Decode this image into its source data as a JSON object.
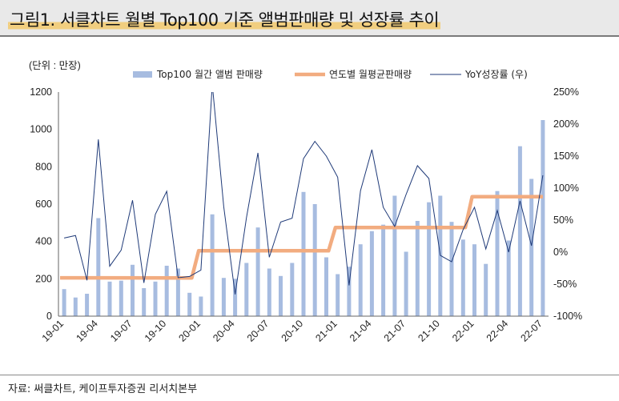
{
  "title": "그림1. 서클차트 월별 Top100 기준 앨범판매량 및 성장률 추이",
  "source": "자료: 써클차트, 케이프투자증권 리서치본부",
  "colors": {
    "bar": "#a7bce0",
    "avg": "#f2ac80",
    "yoy": "#1f3a78",
    "title_highlight": "#f1ce7f",
    "title_bg": "#e9e9e9"
  },
  "chart_data": {
    "type": "bar",
    "unit_label": "(단위 : 만장)",
    "categories": [
      "19-01",
      "19-02",
      "19-03",
      "19-04",
      "19-05",
      "19-06",
      "19-07",
      "19-08",
      "19-09",
      "19-10",
      "19-11",
      "19-12",
      "20-01",
      "20-02",
      "20-03",
      "20-04",
      "20-05",
      "20-06",
      "20-07",
      "20-08",
      "20-09",
      "20-10",
      "20-11",
      "20-12",
      "21-01",
      "21-02",
      "21-03",
      "21-04",
      "21-05",
      "21-06",
      "21-07",
      "21-08",
      "21-09",
      "21-10",
      "21-11",
      "21-12",
      "22-01",
      "22-02",
      "22-03",
      "22-04",
      "22-05",
      "22-06",
      "22-07"
    ],
    "tick_labels": [
      "19-01",
      "19-04",
      "19-07",
      "19-10",
      "20-01",
      "20-04",
      "20-07",
      "20-10",
      "21-01",
      "21-04",
      "21-07",
      "21-10",
      "22-01",
      "22-04",
      "22-07"
    ],
    "series": [
      {
        "name": "Top100 월간 앨범 판매량",
        "type": "bar",
        "axis": "left",
        "values": [
          145,
          100,
          120,
          525,
          185,
          190,
          275,
          150,
          185,
          270,
          255,
          125,
          105,
          545,
          205,
          200,
          285,
          475,
          255,
          215,
          285,
          665,
          600,
          315,
          225,
          265,
          385,
          455,
          490,
          645,
          345,
          510,
          610,
          645,
          505,
          410,
          385,
          280,
          670,
          405,
          910,
          735,
          1050
        ]
      },
      {
        "name": "연도별 월평균판매량",
        "type": "line",
        "axis": "left",
        "values": [
          205,
          205,
          205,
          205,
          205,
          205,
          205,
          205,
          205,
          205,
          205,
          205,
          350,
          350,
          350,
          350,
          350,
          350,
          350,
          350,
          350,
          350,
          350,
          350,
          475,
          475,
          475,
          475,
          475,
          475,
          475,
          475,
          475,
          475,
          475,
          475,
          640,
          640,
          640,
          640,
          640,
          640,
          640
        ]
      },
      {
        "name": "YoY성장률 (우)",
        "type": "line",
        "axis": "right",
        "unit": "%",
        "values": [
          22,
          26,
          -44,
          176,
          -22,
          3,
          81,
          -48,
          59,
          95,
          -40,
          -38,
          -28,
          262,
          71,
          -66,
          54,
          155,
          -8,
          47,
          53,
          146,
          173,
          150,
          117,
          -52,
          96,
          160,
          70,
          40,
          90,
          135,
          115,
          -5,
          -15,
          35,
          70,
          5,
          65,
          0,
          80,
          10,
          120
        ]
      }
    ],
    "ylim": [
      0,
      1200
    ],
    "yticks": [
      0,
      200,
      400,
      600,
      800,
      1000,
      1200
    ],
    "y2lim": [
      -100,
      250
    ],
    "y2ticks": [
      "-100%",
      "-50%",
      "0%",
      "50%",
      "100%",
      "150%",
      "200%",
      "250%"
    ],
    "grid": false,
    "legend_position": "top"
  }
}
